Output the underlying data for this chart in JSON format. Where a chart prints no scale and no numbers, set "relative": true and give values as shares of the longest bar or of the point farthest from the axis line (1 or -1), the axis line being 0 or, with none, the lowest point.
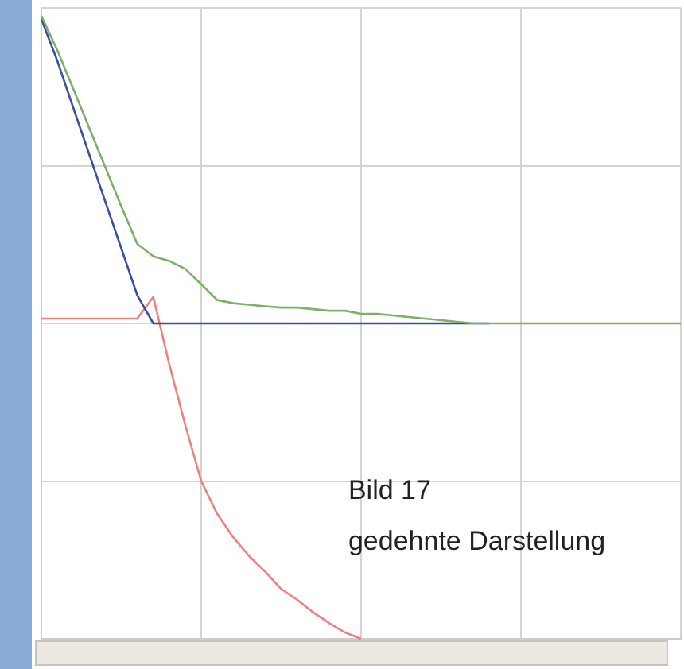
{
  "chart_data": {
    "type": "line",
    "relative": true,
    "grid": true,
    "legend": false,
    "marker": "none",
    "line_style": "solid",
    "categories": [
      null,
      null,
      null,
      null,
      null,
      null,
      null,
      null,
      null,
      null,
      null,
      null,
      null,
      null,
      null,
      null,
      null,
      null,
      null,
      null,
      null,
      null,
      null,
      null,
      null,
      null,
      null,
      null,
      null,
      null,
      null,
      null,
      null,
      null,
      null,
      null,
      null,
      null,
      null,
      null,
      null
    ],
    "series": [
      {
        "color": "#7fb069",
        "values": [
          0.975,
          0.866,
          0.743,
          0.619,
          0.495,
          0.371,
          0.252,
          0.213,
          0.198,
          0.173,
          0.124,
          0.074,
          0.064,
          0.059,
          0.054,
          0.05,
          0.05,
          0.045,
          0.04,
          0.04,
          0.03,
          0.03,
          0.025,
          0.02,
          0.015,
          0.01,
          0.005,
          0,
          0,
          0,
          0,
          0,
          0,
          0,
          0,
          0,
          0,
          0,
          0,
          0,
          0
        ]
      },
      {
        "color": "#3a4fa0",
        "values": [
          0.965,
          0.832,
          0.683,
          0.535,
          0.386,
          0.238,
          0.089,
          0,
          0,
          0,
          0,
          0,
          0,
          0,
          0,
          0,
          0,
          0,
          0,
          0,
          0,
          0,
          0,
          0,
          0,
          0,
          0,
          0,
          0,
          null,
          null,
          null,
          null,
          null,
          null,
          null,
          null,
          null,
          null,
          null,
          null
        ]
      },
      {
        "color": "#f08080",
        "values": [
          0.015,
          0.015,
          0.015,
          0.015,
          0.015,
          0.015,
          0.015,
          0.084,
          -0.129,
          -0.322,
          -0.5,
          -0.604,
          -0.678,
          -0.738,
          -0.787,
          -0.842,
          -0.876,
          -0.916,
          -0.95,
          -0.98,
          -1.0,
          null,
          null,
          null,
          null,
          null,
          null,
          null,
          null,
          null,
          null,
          null,
          null,
          null,
          null,
          null,
          null,
          null,
          null,
          null,
          null
        ]
      }
    ],
    "annotations": [
      "Bild 17",
      "gedehnte Darstellung"
    ]
  }
}
